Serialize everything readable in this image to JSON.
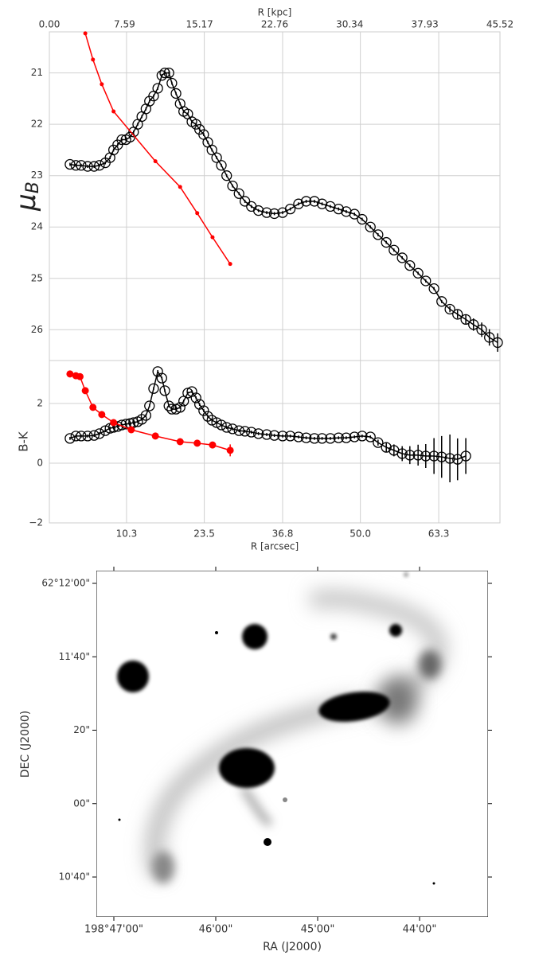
{
  "chart_data": [
    {
      "type": "line",
      "grid": true,
      "ylabel": {
        "symbol": "μ",
        "subscript": "B"
      },
      "x2label": "R [kpc]",
      "x2lim": [
        0,
        45.52
      ],
      "x2ticks": [
        {
          "value": 0,
          "label": "0.00"
        },
        7.59,
        15.17,
        22.76,
        30.34,
        37.93,
        45.52
      ],
      "xlim": [
        -2.8,
        73.7
      ],
      "ylim": [
        26.6,
        20.2
      ],
      "yticks": [
        21,
        22,
        23,
        24,
        25,
        26
      ],
      "series": [
        {
          "color": "#000000",
          "marker": "open-circle",
          "x": [
            0.7,
            1.7,
            2.6,
            3.7,
            4.8,
            5.7,
            6.7,
            7.5,
            8.1,
            8.8,
            9.5,
            10.2,
            10.9,
            11.5,
            12.2,
            12.9,
            13.6,
            14.2,
            14.9,
            15.6,
            16.3,
            16.8,
            17.5,
            18.0,
            18.7,
            19.4,
            20.0,
            20.7,
            21.4,
            22.1,
            22.7,
            23.4,
            24.1,
            24.8,
            25.6,
            26.4,
            27.3,
            28.3,
            29.4,
            30.4,
            31.5,
            32.7,
            34.1,
            35.4,
            36.8,
            38.1,
            39.5,
            40.8,
            42.2,
            43.5,
            44.9,
            46.3,
            47.6,
            49.0,
            50.3,
            51.7,
            53.0,
            54.4,
            55.7,
            57.1,
            58.4,
            59.8,
            61.1,
            62.5,
            63.8,
            65.2,
            66.5,
            67.9,
            69.2,
            70.6,
            71.9,
            73.3
          ],
          "values": [
            22.78,
            22.8,
            22.8,
            22.82,
            22.82,
            22.8,
            22.75,
            22.65,
            22.5,
            22.4,
            22.3,
            22.3,
            22.25,
            22.15,
            22.0,
            21.85,
            21.7,
            21.55,
            21.45,
            21.3,
            21.05,
            21.0,
            21.0,
            21.2,
            21.4,
            21.6,
            21.75,
            21.8,
            21.95,
            22.0,
            22.1,
            22.2,
            22.35,
            22.5,
            22.65,
            22.8,
            23.0,
            23.2,
            23.35,
            23.5,
            23.6,
            23.68,
            23.72,
            23.74,
            23.72,
            23.65,
            23.55,
            23.5,
            23.5,
            23.55,
            23.6,
            23.65,
            23.7,
            23.75,
            23.85,
            24.0,
            24.15,
            24.3,
            24.45,
            24.6,
            24.75,
            24.9,
            25.05,
            25.2,
            25.45,
            25.6,
            25.7,
            25.8,
            25.9,
            26.0,
            26.15,
            26.25
          ],
          "errors": [
            0.03,
            0.03,
            0.03,
            0.03,
            0.03,
            0.03,
            0.03,
            0.03,
            0.03,
            0.03,
            0.03,
            0.03,
            0.03,
            0.03,
            0.03,
            0.03,
            0.03,
            0.03,
            0.03,
            0.03,
            0.03,
            0.03,
            0.03,
            0.03,
            0.03,
            0.03,
            0.03,
            0.03,
            0.03,
            0.03,
            0.03,
            0.03,
            0.03,
            0.03,
            0.03,
            0.03,
            0.03,
            0.03,
            0.03,
            0.03,
            0.03,
            0.03,
            0.03,
            0.03,
            0.03,
            0.03,
            0.03,
            0.03,
            0.03,
            0.03,
            0.03,
            0.03,
            0.03,
            0.03,
            0.03,
            0.03,
            0.03,
            0.03,
            0.03,
            0.03,
            0.03,
            0.03,
            0.03,
            0.03,
            0.03,
            0.06,
            0.08,
            0.1,
            0.12,
            0.14,
            0.16,
            0.18
          ]
        },
        {
          "color": "#ff0000",
          "marker": "dot",
          "x": [
            3.3,
            4.6,
            6.1,
            8.1,
            15.2,
            19.4,
            22.3,
            24.9,
            27.9
          ],
          "values": [
            20.23,
            20.74,
            21.22,
            21.75,
            22.72,
            23.22,
            23.73,
            24.2,
            24.72
          ]
        }
      ]
    },
    {
      "type": "line",
      "grid": true,
      "ylabel": "B-K",
      "xlabel": "R [arcsec]",
      "xlim": [
        -2.8,
        73.7
      ],
      "xticks": [
        10.3,
        23.5,
        36.8,
        {
          "value": 50,
          "label": "50.0"
        },
        63.3
      ],
      "ylim": [
        -2,
        3.44
      ],
      "yticks": [
        {
          "value": -2,
          "label": "−2"
        },
        0,
        2
      ],
      "series": [
        {
          "color": "#000000",
          "marker": "open-circle",
          "x": [
            0.7,
            1.7,
            2.6,
            3.7,
            4.8,
            5.7,
            6.7,
            7.5,
            8.1,
            8.8,
            9.5,
            10.2,
            10.9,
            11.5,
            12.2,
            12.9,
            13.6,
            14.2,
            14.9,
            15.6,
            16.3,
            16.8,
            17.5,
            18.0,
            18.7,
            19.4,
            20.0,
            20.7,
            21.4,
            22.1,
            22.7,
            23.4,
            24.1,
            24.8,
            25.6,
            26.4,
            27.3,
            28.3,
            29.4,
            30.4,
            31.5,
            32.7,
            34.1,
            35.4,
            36.8,
            38.1,
            39.5,
            40.8,
            42.2,
            43.5,
            44.9,
            46.3,
            47.6,
            49.0,
            50.3,
            51.7,
            53.0,
            54.4,
            55.7,
            57.1,
            58.4,
            59.8,
            61.1,
            62.5,
            63.8,
            65.2,
            66.5,
            67.9
          ],
          "values": [
            0.83,
            0.91,
            0.91,
            0.91,
            0.93,
            0.99,
            1.09,
            1.17,
            1.2,
            1.23,
            1.28,
            1.31,
            1.33,
            1.36,
            1.39,
            1.47,
            1.6,
            1.92,
            2.5,
            3.07,
            2.85,
            2.43,
            1.92,
            1.81,
            1.81,
            1.87,
            2.08,
            2.35,
            2.4,
            2.19,
            1.97,
            1.76,
            1.57,
            1.44,
            1.36,
            1.28,
            1.2,
            1.15,
            1.09,
            1.07,
            1.04,
            0.99,
            0.96,
            0.93,
            0.91,
            0.91,
            0.88,
            0.85,
            0.83,
            0.83,
            0.83,
            0.85,
            0.85,
            0.88,
            0.91,
            0.88,
            0.69,
            0.53,
            0.43,
            0.32,
            0.27,
            0.27,
            0.24,
            0.24,
            0.21,
            0.16,
            0.13,
            0.24
          ],
          "errors": [
            0.05,
            0.05,
            0.05,
            0.05,
            0.05,
            0.05,
            0.05,
            0.05,
            0.05,
            0.05,
            0.05,
            0.05,
            0.05,
            0.05,
            0.05,
            0.05,
            0.05,
            0.05,
            0.05,
            0.05,
            0.05,
            0.05,
            0.05,
            0.05,
            0.05,
            0.05,
            0.05,
            0.05,
            0.05,
            0.05,
            0.05,
            0.05,
            0.05,
            0.05,
            0.05,
            0.05,
            0.05,
            0.05,
            0.05,
            0.05,
            0.05,
            0.05,
            0.05,
            0.05,
            0.05,
            0.05,
            0.05,
            0.05,
            0.05,
            0.05,
            0.05,
            0.05,
            0.05,
            0.05,
            0.05,
            0.05,
            0.1,
            0.15,
            0.2,
            0.25,
            0.3,
            0.35,
            0.4,
            0.6,
            0.7,
            0.8,
            0.7,
            0.6
          ]
        },
        {
          "color": "#ff0000",
          "marker": "filled-circle",
          "x": [
            0.7,
            1.7,
            2.4,
            3.3,
            4.6,
            6.1,
            8.1,
            11.1,
            15.2,
            19.4,
            22.3,
            24.9,
            27.9
          ],
          "values": [
            2.99,
            2.93,
            2.9,
            2.43,
            1.87,
            1.63,
            1.36,
            1.12,
            0.91,
            0.72,
            0.67,
            0.61,
            0.43
          ],
          "errors": [
            0.02,
            0.02,
            0.02,
            0.02,
            0.02,
            0.02,
            0.02,
            0.02,
            0.02,
            0.02,
            0.02,
            0.02,
            0.2
          ]
        }
      ]
    }
  ],
  "image_panel": {
    "xlabel": "RA (J2000)",
    "ylabel": "DEC (J2000)",
    "xticks": [
      "198°47'00\"",
      "46'00\"",
      "45'00\"",
      "44'00\""
    ],
    "yticks": [
      "62°12'00\"",
      "11'40\"",
      "20\"",
      "00\"",
      "10'40\""
    ]
  }
}
